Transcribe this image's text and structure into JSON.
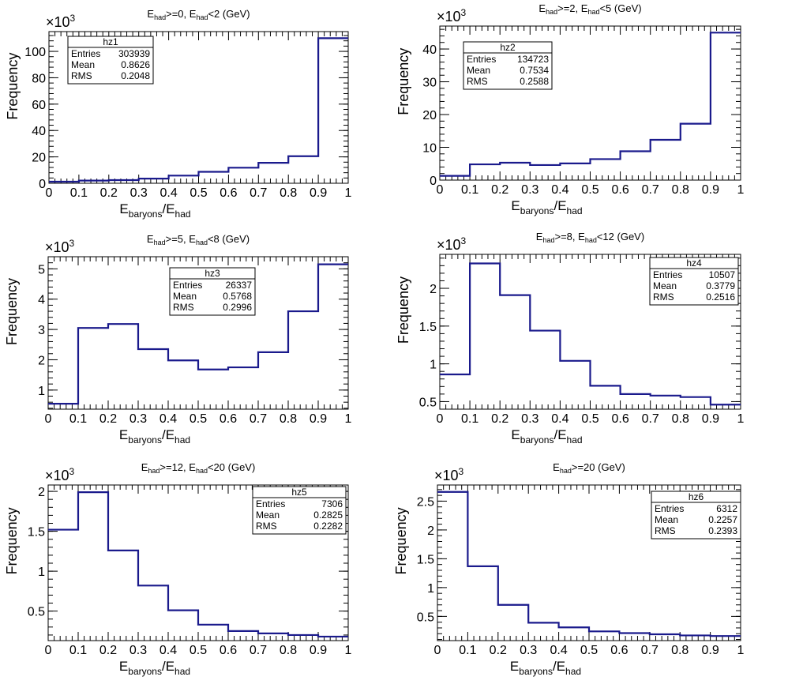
{
  "chart_data": [
    {
      "id": "hz1",
      "type": "histogram",
      "title": {
        "prefix": "E",
        "sub1": "had",
        "mid": ">=0, E",
        "sub2": "had",
        "suffix": "<2 (GeV)"
      },
      "xlabel": {
        "main1": "E",
        "sub1": "baryons",
        "main2": "/E",
        "sub2": "had"
      },
      "ylabel": "Frequency",
      "y_multiplier": {
        "base": "×10",
        "exp": "3"
      },
      "bin_edges": [
        0,
        0.1,
        0.2,
        0.3,
        0.4,
        0.5,
        0.6,
        0.7,
        0.8,
        0.9,
        1.0
      ],
      "values": [
        1.2,
        2.0,
        2.4,
        3.5,
        5.8,
        8.7,
        11.8,
        15.5,
        20.5,
        110
      ],
      "xlim": [
        0,
        1
      ],
      "ylim": [
        0,
        115
      ],
      "xticks": [
        0,
        0.1,
        0.2,
        0.3,
        0.4,
        0.5,
        0.6,
        0.7,
        0.8,
        0.9,
        1
      ],
      "xtick_labels": [
        "0",
        "0.1",
        "0.2",
        "0.3",
        "0.4",
        "0.5",
        "0.6",
        "0.7",
        "0.8",
        "0.9",
        "1"
      ],
      "yticks": [
        0,
        20,
        40,
        60,
        80,
        100
      ],
      "ytick_labels": [
        "0",
        "20",
        "40",
        "60",
        "80",
        "100"
      ],
      "stats": {
        "name": "hz1",
        "rows": [
          [
            "Entries",
            "303939"
          ],
          [
            "Mean",
            "0.8626"
          ],
          [
            "RMS",
            "0.2048"
          ]
        ]
      }
    },
    {
      "id": "hz2",
      "type": "histogram",
      "title": {
        "prefix": "E",
        "sub1": "had",
        "mid": ">=2, E",
        "sub2": "had",
        "suffix": "<5 (GeV)"
      },
      "xlabel": {
        "main1": "E",
        "sub1": "baryons",
        "main2": "/E",
        "sub2": "had"
      },
      "ylabel": "Frequency",
      "y_multiplier": {
        "base": "×10",
        "exp": "3"
      },
      "bin_edges": [
        0,
        0.1,
        0.2,
        0.3,
        0.4,
        0.5,
        0.6,
        0.7,
        0.8,
        0.9,
        1.0
      ],
      "values": [
        1.3,
        4.8,
        5.3,
        4.6,
        5.1,
        6.4,
        8.8,
        12.3,
        17.2,
        45
      ],
      "xlim": [
        0,
        1
      ],
      "ylim": [
        0,
        47
      ],
      "xticks": [
        0,
        0.1,
        0.2,
        0.3,
        0.4,
        0.5,
        0.6,
        0.7,
        0.8,
        0.9,
        1
      ],
      "xtick_labels": [
        "0",
        "0.1",
        "0.2",
        "0.3",
        "0.4",
        "0.5",
        "0.6",
        "0.7",
        "0.8",
        "0.9",
        "1"
      ],
      "yticks": [
        0,
        10,
        20,
        30,
        40
      ],
      "ytick_labels": [
        "0",
        "10",
        "20",
        "30",
        "40"
      ],
      "stats": {
        "name": "hz2",
        "rows": [
          [
            "Entries",
            "134723"
          ],
          [
            "Mean",
            "0.7534"
          ],
          [
            "RMS",
            "0.2588"
          ]
        ]
      }
    },
    {
      "id": "hz3",
      "type": "histogram",
      "title": {
        "prefix": "E",
        "sub1": "had",
        "mid": ">=5, E",
        "sub2": "had",
        "suffix": "<8 (GeV)"
      },
      "xlabel": {
        "main1": "E",
        "sub1": "baryons",
        "main2": "/E",
        "sub2": "had"
      },
      "ylabel": "Frequency",
      "y_multiplier": {
        "base": "×10",
        "exp": "3"
      },
      "bin_edges": [
        0,
        0.1,
        0.2,
        0.3,
        0.4,
        0.5,
        0.6,
        0.7,
        0.8,
        0.9,
        1.0
      ],
      "values": [
        0.55,
        3.05,
        3.18,
        2.35,
        1.98,
        1.68,
        1.75,
        2.25,
        3.6,
        5.15
      ],
      "xlim": [
        0,
        1
      ],
      "ylim": [
        0.37,
        5.4
      ],
      "xticks": [
        0,
        0.1,
        0.2,
        0.3,
        0.4,
        0.5,
        0.6,
        0.7,
        0.8,
        0.9,
        1
      ],
      "xtick_labels": [
        "0",
        "0.1",
        "0.2",
        "0.3",
        "0.4",
        "0.5",
        "0.6",
        "0.7",
        "0.8",
        "0.9",
        "1"
      ],
      "yticks": [
        1,
        2,
        3,
        4,
        5
      ],
      "ytick_labels": [
        "1",
        "2",
        "3",
        "4",
        "5"
      ],
      "stats": {
        "name": "hz3",
        "rows": [
          [
            "Entries",
            "26337"
          ],
          [
            "Mean",
            "0.5768"
          ],
          [
            "RMS",
            "0.2996"
          ]
        ]
      }
    },
    {
      "id": "hz4",
      "type": "histogram",
      "title": {
        "prefix": "E",
        "sub1": "had",
        "mid": ">=8, E",
        "sub2": "had",
        "suffix": "<12 (GeV)"
      },
      "xlabel": {
        "main1": "E",
        "sub1": "baryons",
        "main2": "/E",
        "sub2": "had"
      },
      "ylabel": "Frequency",
      "y_multiplier": {
        "base": "×10",
        "exp": "3"
      },
      "bin_edges": [
        0,
        0.1,
        0.2,
        0.3,
        0.4,
        0.5,
        0.6,
        0.7,
        0.8,
        0.9,
        1.0
      ],
      "values": [
        0.86,
        2.33,
        1.91,
        1.44,
        1.04,
        0.71,
        0.6,
        0.58,
        0.56,
        0.46
      ],
      "xlim": [
        0,
        1
      ],
      "ylim": [
        0.4,
        2.45
      ],
      "xticks": [
        0,
        0.1,
        0.2,
        0.3,
        0.4,
        0.5,
        0.6,
        0.7,
        0.8,
        0.9,
        1
      ],
      "xtick_labels": [
        "0",
        "0.1",
        "0.2",
        "0.3",
        "0.4",
        "0.5",
        "0.6",
        "0.7",
        "0.8",
        "0.9",
        "1"
      ],
      "yticks": [
        0.5,
        1,
        1.5,
        2
      ],
      "ytick_labels": [
        "0.5",
        "1",
        "1.5",
        "2"
      ],
      "stats": {
        "name": "hz4",
        "rows": [
          [
            "Entries",
            "10507"
          ],
          [
            "Mean",
            "0.3779"
          ],
          [
            "RMS",
            "0.2516"
          ]
        ]
      }
    },
    {
      "id": "hz5",
      "type": "histogram",
      "title": {
        "prefix": "E",
        "sub1": "had",
        "mid": ">=12, E",
        "sub2": "had",
        "suffix": "<20 (GeV)"
      },
      "xlabel": {
        "main1": "E",
        "sub1": "baryons",
        "main2": "/E",
        "sub2": "had"
      },
      "ylabel": "Frequency",
      "y_multiplier": {
        "base": "×10",
        "exp": "3"
      },
      "bin_edges": [
        0,
        0.1,
        0.2,
        0.3,
        0.4,
        0.5,
        0.6,
        0.7,
        0.8,
        0.9,
        1.0
      ],
      "values": [
        1.52,
        1.99,
        1.26,
        0.82,
        0.51,
        0.33,
        0.25,
        0.22,
        0.2,
        0.18
      ],
      "xlim": [
        0,
        1
      ],
      "ylim": [
        0.13,
        2.08
      ],
      "xticks": [
        0,
        0.1,
        0.2,
        0.3,
        0.4,
        0.5,
        0.6,
        0.7,
        0.8,
        0.9,
        1
      ],
      "xtick_labels": [
        "0",
        "0.1",
        "0.2",
        "0.3",
        "0.4",
        "0.5",
        "0.6",
        "0.7",
        "0.8",
        "0.9",
        "1"
      ],
      "yticks": [
        0.5,
        1,
        1.5,
        2
      ],
      "ytick_labels": [
        "0.5",
        "1",
        "1.5",
        "2"
      ],
      "stats": {
        "name": "hz5",
        "rows": [
          [
            "Entries",
            "7306"
          ],
          [
            "Mean",
            "0.2825"
          ],
          [
            "RMS",
            "0.2282"
          ]
        ]
      }
    },
    {
      "id": "hz6",
      "type": "histogram",
      "title": {
        "prefix": "E",
        "sub1": "had",
        "mid": ">=20 (GeV)",
        "sub2": "",
        "suffix": ""
      },
      "xlabel": {
        "main1": "E",
        "sub1": "baryons",
        "main2": "/E",
        "sub2": "had"
      },
      "ylabel": "Frequency",
      "y_multiplier": {
        "base": "×10",
        "exp": "3"
      },
      "bin_edges": [
        0,
        0.1,
        0.2,
        0.3,
        0.4,
        0.5,
        0.6,
        0.7,
        0.8,
        0.9,
        1.0
      ],
      "values": [
        2.66,
        1.37,
        0.7,
        0.39,
        0.31,
        0.24,
        0.21,
        0.19,
        0.17,
        0.16
      ],
      "xlim": [
        0,
        1
      ],
      "ylim": [
        0.08,
        2.78
      ],
      "xticks": [
        0,
        0.1,
        0.2,
        0.3,
        0.4,
        0.5,
        0.6,
        0.7,
        0.8,
        0.9,
        1
      ],
      "xtick_labels": [
        "0",
        "0.1",
        "0.2",
        "0.3",
        "0.4",
        "0.5",
        "0.6",
        "0.7",
        "0.8",
        "0.9",
        "1"
      ],
      "yticks": [
        0.5,
        1,
        1.5,
        2,
        2.5
      ],
      "ytick_labels": [
        "0.5",
        "1",
        "1.5",
        "2",
        "2.5"
      ],
      "stats": {
        "name": "hz6",
        "rows": [
          [
            "Entries",
            "6312"
          ],
          [
            "Mean",
            "0.2257"
          ],
          [
            "RMS",
            "0.2393"
          ]
        ]
      }
    }
  ],
  "colors": {
    "histogram_line": "#1a1a8c",
    "axis": "#000000",
    "background": "#ffffff"
  }
}
